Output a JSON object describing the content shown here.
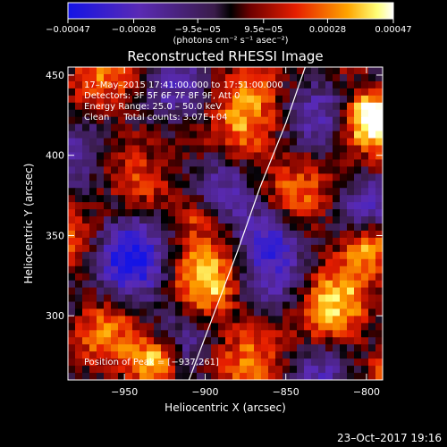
{
  "chart_data": {
    "type": "heatmap",
    "title": "Reconstructed RHESSI Image",
    "xlabel": "Heliocentric X (arcsec)",
    "ylabel": "Heliocentric Y (arcsec)",
    "xlim": [
      -985,
      -790
    ],
    "ylim": [
      260,
      455
    ],
    "x_ticks": [
      -950,
      -900,
      -850,
      -800
    ],
    "x_tick_labels": [
      "−950",
      "−900",
      "−850",
      "−800"
    ],
    "y_ticks": [
      300,
      350,
      400,
      450
    ],
    "y_tick_labels": [
      "300",
      "350",
      "400",
      "450"
    ],
    "colorbar": {
      "colormap": "blue-purple-red-orange-yellow-white",
      "range": [
        -0.00047,
        0.00047
      ],
      "tick_values": [
        -0.00047,
        -0.00028,
        -9.5e-05,
        9.5e-05,
        0.00028,
        0.00047
      ],
      "tick_labels": [
        "−0.00047",
        "−0.00028",
        "−9.5e−05",
        "9.5e−05",
        "0.00028",
        "0.00047"
      ],
      "unit_label": "(photons cm⁻² s⁻¹ asec⁻²)"
    },
    "info_lines": [
      "17–May–2015 17:41:00.000 to 17:51:00.000",
      "Detectors: 3F 5F 6F 7F 8F 9F, Att 0",
      "Energy Range: 25.0 – 50.0 keV",
      "Clean     Total counts: 3.07E+04"
    ],
    "peak_label": "Position of Peak = [−937,261]",
    "peak_position": [
      -937,
      261
    ],
    "limb_curve": [
      [
        -910,
        260
      ],
      [
        -895,
        300
      ],
      [
        -880,
        340
      ],
      [
        -866,
        380
      ],
      [
        -850,
        420
      ],
      [
        -838,
        455
      ]
    ],
    "grid": false
  },
  "footer": {
    "date": "23–Oct–2017 19:16"
  },
  "colors": {
    "background": "#000000",
    "text": "#ffffff",
    "limb": "#ffffff"
  }
}
